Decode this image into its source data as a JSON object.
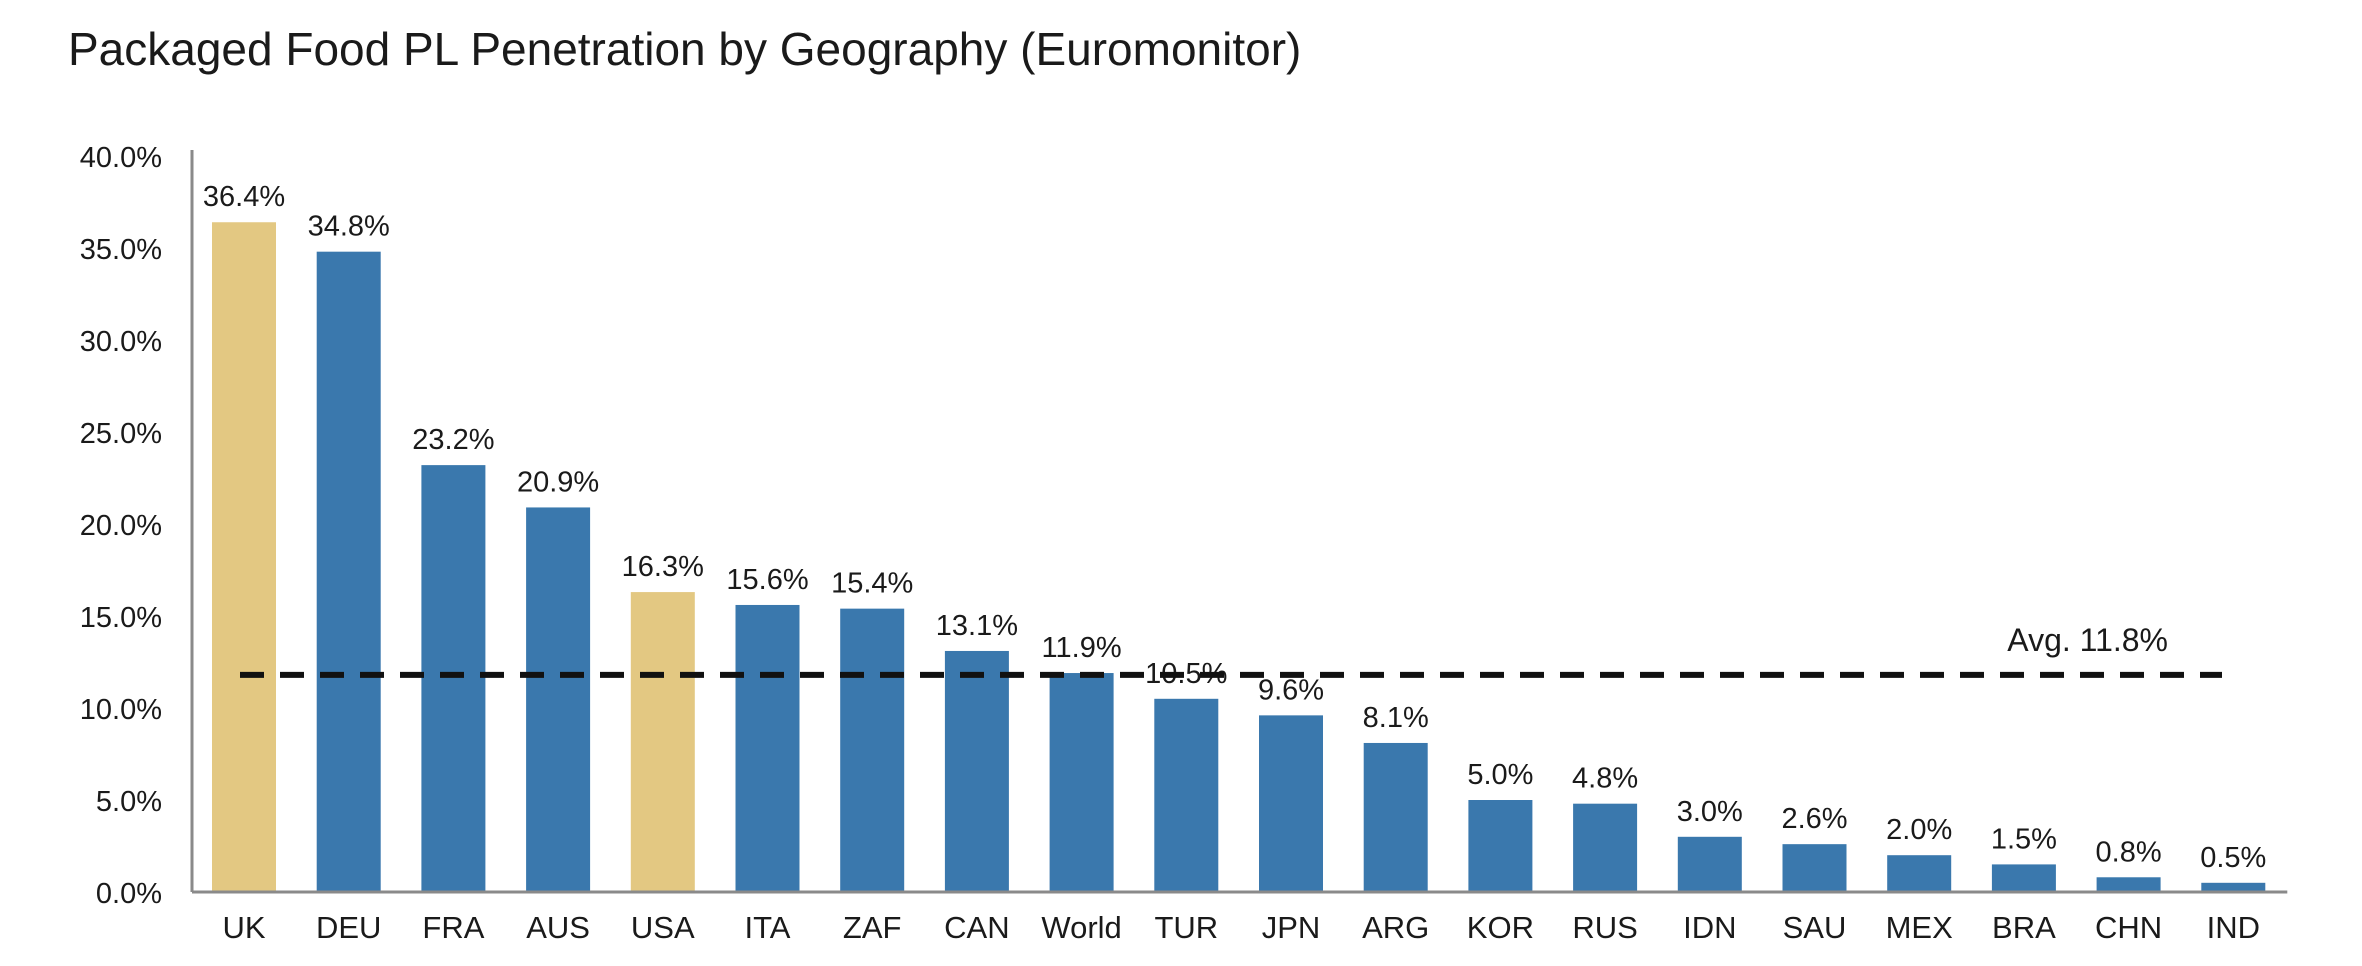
{
  "chart_data": {
    "type": "bar",
    "title": "Packaged Food PL Penetration by Geography (Euromonitor)",
    "xlabel": "",
    "ylabel": "",
    "ylim": [
      0,
      40
    ],
    "yticks": [
      "0.0%",
      "5.0%",
      "10.0%",
      "15.0%",
      "20.0%",
      "25.0%",
      "30.0%",
      "35.0%",
      "40.0%"
    ],
    "ytick_values": [
      0,
      5,
      10,
      15,
      20,
      25,
      30,
      35,
      40
    ],
    "categories": [
      "UK",
      "DEU",
      "FRA",
      "AUS",
      "USA",
      "ITA",
      "ZAF",
      "CAN",
      "World",
      "TUR",
      "JPN",
      "ARG",
      "KOR",
      "RUS",
      "IDN",
      "SAU",
      "MEX",
      "BRA",
      "CHN",
      "IND"
    ],
    "values": [
      36.4,
      34.8,
      23.2,
      20.9,
      16.3,
      15.6,
      15.4,
      13.1,
      11.9,
      10.5,
      9.6,
      8.1,
      5.0,
      4.8,
      3.0,
      2.6,
      2.0,
      1.5,
      0.8,
      0.5
    ],
    "value_labels": [
      "36.4%",
      "34.8%",
      "23.2%",
      "20.9%",
      "16.3%",
      "15.6%",
      "15.4%",
      "13.1%",
      "11.9%",
      "10.5%",
      "9.6%",
      "8.1%",
      "5.0%",
      "4.8%",
      "3.0%",
      "2.6%",
      "2.0%",
      "1.5%",
      "0.8%",
      "0.5%"
    ],
    "highlighted": [
      "UK",
      "USA"
    ],
    "colors": {
      "default": "#3a78ad",
      "highlight": "#e3c882",
      "average_line": "#111111"
    },
    "average": {
      "value": 11.8,
      "label": "Avg. 11.8%"
    },
    "grid": false,
    "legend": "none"
  }
}
